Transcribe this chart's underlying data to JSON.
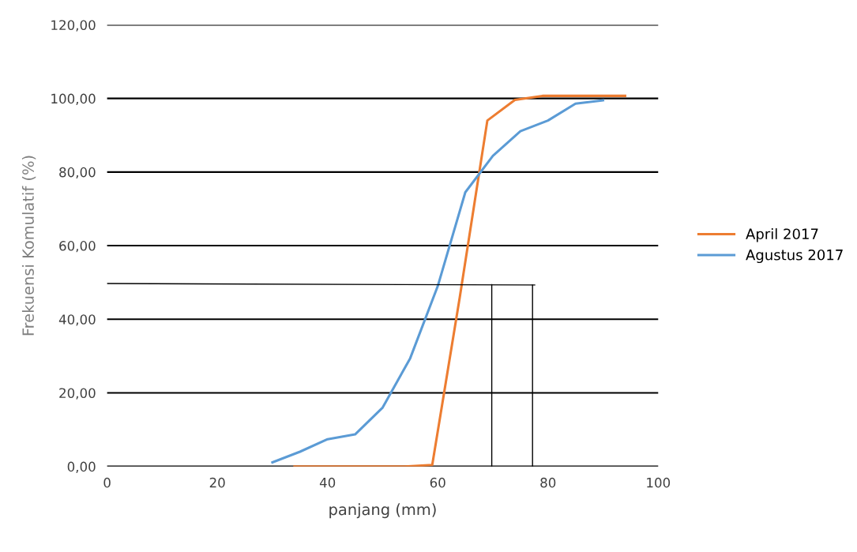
{
  "chart_data": {
    "type": "line",
    "xlabel": "panjang (mm)",
    "ylabel": "Frekuensi Komulatif (%)",
    "xlim": [
      0,
      100
    ],
    "xticks": [
      0,
      20,
      40,
      60,
      80,
      100
    ],
    "ylim": [
      0,
      120
    ],
    "yticks": [
      {
        "value": 0,
        "label": "0,00"
      },
      {
        "value": 20,
        "label": "20,00"
      },
      {
        "value": 40,
        "label": "40,00"
      },
      {
        "value": 60,
        "label": "60,00"
      },
      {
        "value": 80,
        "label": "80,00"
      },
      {
        "value": 100,
        "label": "100,00"
      },
      {
        "value": 120,
        "label": "120,00"
      }
    ],
    "grid": "y",
    "legend": "right",
    "marker": "none",
    "line_style": "solid",
    "series": [
      {
        "name": "April 2017",
        "color": "#ed7d31",
        "x": [
          34,
          39,
          44,
          49,
          54,
          59,
          64,
          69,
          74,
          79,
          84,
          89,
          94
        ],
        "values": [
          0,
          0,
          0,
          0,
          0,
          0.4,
          46,
          94,
          99.6,
          100.7,
          100.7,
          100.7,
          100.7
        ]
      },
      {
        "name": "Agustus 2017",
        "color": "#5b9bd5",
        "x": [
          30,
          35,
          40,
          45,
          50,
          55,
          60,
          65,
          70,
          75,
          80,
          85,
          90
        ],
        "values": [
          1.1,
          4,
          7.4,
          8.7,
          16,
          29.4,
          49,
          74.5,
          84.4,
          91.1,
          94,
          98.6,
          99.5
        ]
      },
      {
        "color": "#000000",
        "x": [
          0,
          77.6
        ],
        "values": [
          49.7,
          49.3
        ]
      },
      {
        "color": "#000000",
        "x": [
          69.8,
          69.8
        ],
        "values": [
          0,
          49.4
        ]
      },
      {
        "color": "#000000",
        "x": [
          77.2,
          77.2
        ],
        "values": [
          0,
          49.3
        ]
      }
    ]
  }
}
